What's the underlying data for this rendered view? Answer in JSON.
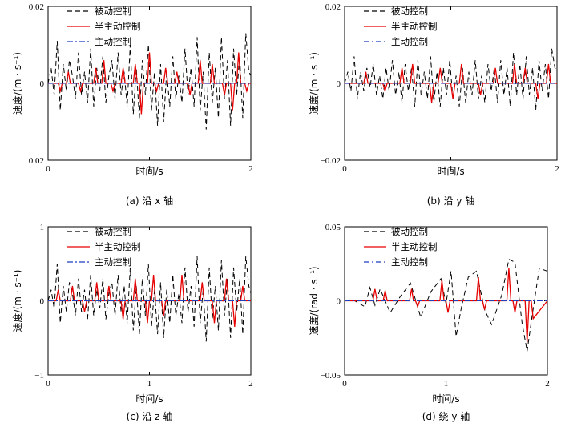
{
  "chart_data": [
    {
      "type": "line",
      "caption": "(a)  沿 x 轴",
      "ylabel": "速度/(m · s⁻¹)",
      "xlabel": "时间/s",
      "xlim": [
        0,
        2
      ],
      "ylim": [
        -0.02,
        0.02
      ],
      "xticks": [
        "0",
        "1",
        "2"
      ],
      "yticks": [
        "0.02",
        "0",
        "0.02"
      ],
      "legend": "top-left",
      "series": [
        {
          "name": "被动控制",
          "style": "dashed",
          "color": "#000000",
          "x": [
            0,
            0.03,
            0.06,
            0.09,
            0.12,
            0.15,
            0.18,
            0.21,
            0.24,
            0.27,
            0.3,
            0.33,
            0.36,
            0.39,
            0.42,
            0.45,
            0.48,
            0.51,
            0.54,
            0.57,
            0.6,
            0.63,
            0.66,
            0.69,
            0.72,
            0.75,
            0.78,
            0.81,
            0.84,
            0.87,
            0.9,
            0.93,
            0.96,
            0.99,
            1.02,
            1.05,
            1.08,
            1.11,
            1.14,
            1.17,
            1.2,
            1.23,
            1.26,
            1.29,
            1.32,
            1.35,
            1.38,
            1.41,
            1.44,
            1.47,
            1.5,
            1.53,
            1.56,
            1.59,
            1.62,
            1.65,
            1.68,
            1.71,
            1.74,
            1.77,
            1.8,
            1.83,
            1.86,
            1.89,
            1.92,
            1.95,
            1.98,
            2.0
          ],
          "y": [
            0,
            0.004,
            -0.003,
            0.011,
            -0.007,
            0.005,
            -0.002,
            0.006,
            0.002,
            -0.004,
            0.008,
            -0.003,
            0.003,
            -0.005,
            0.009,
            -0.006,
            0.004,
            -0.002,
            0.007,
            -0.005,
            0.002,
            0.006,
            -0.004,
            0.008,
            -0.003,
            0.003,
            -0.006,
            0.01,
            -0.008,
            0.004,
            -0.009,
            0.006,
            -0.003,
            0.01,
            -0.007,
            0.003,
            -0.011,
            0.005,
            -0.01,
            0.003,
            -0.006,
            0.007,
            -0.004,
            0.002,
            -0.005,
            0.009,
            -0.003,
            0.004,
            -0.006,
            0.012,
            -0.007,
            0.003,
            -0.012,
            0.008,
            -0.005,
            0.004,
            -0.009,
            0.012,
            -0.004,
            0.006,
            -0.011,
            0.009,
            -0.003,
            0.007,
            -0.009,
            0.013,
            0.003,
            0.002
          ]
        },
        {
          "name": "半主动控制",
          "style": "solid",
          "color": "#e60000",
          "x": [
            0,
            0.1,
            0.12,
            0.14,
            0.18,
            0.2,
            0.22,
            0.3,
            0.32,
            0.34,
            0.45,
            0.47,
            0.49,
            0.53,
            0.55,
            0.57,
            0.62,
            0.64,
            0.66,
            0.72,
            0.74,
            0.76,
            0.84,
            0.86,
            0.88,
            0.9,
            0.92,
            0.94,
            0.98,
            1.0,
            1.02,
            1.05,
            1.07,
            1.09,
            1.14,
            1.16,
            1.18,
            1.25,
            1.27,
            1.29,
            1.38,
            1.4,
            1.42,
            1.48,
            1.5,
            1.52,
            1.6,
            1.62,
            1.64,
            1.72,
            1.74,
            1.76,
            1.8,
            1.82,
            1.84,
            1.86,
            1.88,
            1.9,
            1.94,
            1.96,
            1.98,
            2.0
          ],
          "y": [
            0,
            0,
            -0.002,
            0,
            0,
            0.003,
            0,
            0,
            -0.002,
            0,
            0,
            0.004,
            0,
            0,
            0.006,
            0,
            0,
            -0.002,
            0,
            0,
            0.004,
            0,
            0,
            0.005,
            0,
            0,
            -0.008,
            0,
            0,
            0.008,
            0,
            0,
            -0.002,
            0,
            0,
            0.004,
            0,
            0,
            0.003,
            0,
            0,
            -0.003,
            0,
            0,
            0.006,
            0,
            0,
            0.005,
            0,
            0,
            -0.003,
            0,
            0,
            -0.007,
            0,
            0,
            0.008,
            0,
            0,
            -0.002,
            0,
            0
          ]
        },
        {
          "name": "主动控制",
          "style": "dashdot",
          "color": "#1f3fbf",
          "x": [
            0,
            2
          ],
          "y": [
            0,
            0
          ]
        }
      ]
    },
    {
      "type": "line",
      "caption": "(b)  沿 y 轴",
      "ylabel": "速度/(m · s⁻¹)",
      "xlabel": "时间/s",
      "xlim": [
        0,
        2
      ],
      "ylim": [
        -0.02,
        0.02
      ],
      "xticks": [
        "0",
        "1",
        "2"
      ],
      "yticks": [
        "0.02",
        "0",
        "−0.02"
      ],
      "legend": "top-left",
      "series": [
        {
          "name": "被动控制",
          "style": "dashed",
          "color": "#000000",
          "x": [
            0,
            0.03,
            0.06,
            0.09,
            0.12,
            0.15,
            0.18,
            0.21,
            0.24,
            0.27,
            0.3,
            0.33,
            0.36,
            0.39,
            0.42,
            0.45,
            0.48,
            0.51,
            0.54,
            0.57,
            0.6,
            0.63,
            0.66,
            0.69,
            0.72,
            0.75,
            0.78,
            0.81,
            0.84,
            0.87,
            0.9,
            0.93,
            0.96,
            0.99,
            1.02,
            1.05,
            1.08,
            1.11,
            1.14,
            1.17,
            1.2,
            1.23,
            1.26,
            1.29,
            1.32,
            1.35,
            1.38,
            1.41,
            1.44,
            1.47,
            1.5,
            1.53,
            1.56,
            1.59,
            1.62,
            1.65,
            1.68,
            1.71,
            1.74,
            1.77,
            1.8,
            1.83,
            1.86,
            1.89,
            1.92,
            1.95,
            1.98,
            2.0
          ],
          "y": [
            0,
            0.003,
            -0.002,
            0.007,
            -0.004,
            0.003,
            -0.002,
            0.004,
            -0.001,
            0.005,
            -0.003,
            0.002,
            -0.004,
            0.004,
            -0.002,
            0.006,
            -0.003,
            0.003,
            -0.005,
            0.005,
            -0.002,
            0.004,
            -0.006,
            0.006,
            -0.003,
            0.003,
            -0.004,
            0.007,
            -0.005,
            0.003,
            -0.006,
            0.004,
            -0.003,
            0.006,
            -0.004,
            0.002,
            -0.006,
            0.004,
            -0.005,
            0.003,
            -0.003,
            0.006,
            -0.004,
            0.002,
            -0.005,
            0.005,
            -0.002,
            0.004,
            -0.005,
            0.006,
            -0.003,
            0.004,
            -0.006,
            0.008,
            -0.003,
            0.005,
            -0.004,
            0.007,
            -0.003,
            0.004,
            -0.007,
            0.006,
            -0.002,
            0.005,
            -0.004,
            0.009,
            0.004,
            0.003
          ]
        },
        {
          "name": "半主动控制",
          "style": "solid",
          "color": "#e60000",
          "x": [
            0,
            0.18,
            0.2,
            0.22,
            0.36,
            0.38,
            0.4,
            0.52,
            0.54,
            0.56,
            0.62,
            0.64,
            0.66,
            0.8,
            0.82,
            0.84,
            0.88,
            0.9,
            0.92,
            1.0,
            1.02,
            1.04,
            1.08,
            1.1,
            1.12,
            1.26,
            1.28,
            1.3,
            1.4,
            1.42,
            1.44,
            1.58,
            1.6,
            1.62,
            1.68,
            1.7,
            1.72,
            1.8,
            1.82,
            1.84,
            1.9,
            1.92,
            1.94,
            2.0
          ],
          "y": [
            0,
            0,
            0.003,
            0,
            0,
            -0.002,
            0,
            0,
            0.004,
            0,
            0,
            0.005,
            0,
            0,
            -0.005,
            0,
            0,
            0.004,
            0,
            0,
            -0.004,
            0,
            0,
            0.005,
            0,
            0,
            -0.003,
            0,
            0,
            0.004,
            0,
            0,
            0.005,
            0,
            0,
            0.004,
            0,
            0,
            -0.004,
            0,
            0,
            0.005,
            0,
            0
          ]
        },
        {
          "name": "主动控制",
          "style": "dashdot",
          "color": "#1f3fbf",
          "x": [
            0,
            2
          ],
          "y": [
            0,
            0
          ]
        }
      ]
    },
    {
      "type": "line",
      "caption": "(c)  沿 z 轴",
      "ylabel": "速度/(m · s⁻¹)",
      "xlabel": "时间/s",
      "xlim": [
        0,
        2
      ],
      "ylim": [
        -1,
        1
      ],
      "xticks": [
        "0",
        "1",
        "2"
      ],
      "yticks": [
        "1",
        "0",
        "−1"
      ],
      "legend": "top-left",
      "series": [
        {
          "name": "被动控制",
          "style": "dashed",
          "color": "#000000",
          "x": [
            0,
            0.03,
            0.06,
            0.09,
            0.12,
            0.15,
            0.18,
            0.21,
            0.24,
            0.27,
            0.3,
            0.33,
            0.36,
            0.39,
            0.42,
            0.45,
            0.48,
            0.51,
            0.54,
            0.57,
            0.6,
            0.63,
            0.66,
            0.69,
            0.72,
            0.75,
            0.78,
            0.81,
            0.84,
            0.87,
            0.9,
            0.93,
            0.96,
            0.99,
            1.02,
            1.05,
            1.08,
            1.11,
            1.14,
            1.17,
            1.2,
            1.23,
            1.26,
            1.29,
            1.32,
            1.35,
            1.38,
            1.41,
            1.44,
            1.47,
            1.5,
            1.53,
            1.56,
            1.59,
            1.62,
            1.65,
            1.68,
            1.71,
            1.74,
            1.77,
            1.8,
            1.83,
            1.86,
            1.89,
            1.92,
            1.95,
            1.98,
            2.0
          ],
          "y": [
            0,
            0.15,
            -0.1,
            0.5,
            -0.3,
            0.2,
            -0.15,
            0.25,
            0.1,
            -0.2,
            0.3,
            -0.15,
            0.15,
            -0.25,
            0.35,
            -0.2,
            0.15,
            -0.1,
            0.3,
            -0.25,
            0.1,
            0.25,
            -0.2,
            0.35,
            -0.15,
            0.2,
            -0.3,
            0.45,
            -0.4,
            0.2,
            -0.45,
            0.3,
            -0.2,
            0.5,
            -0.35,
            0.15,
            -0.45,
            0.25,
            -0.5,
            0.15,
            -0.3,
            0.35,
            -0.2,
            0.1,
            -0.3,
            0.45,
            -0.15,
            0.2,
            -0.35,
            0.6,
            -0.3,
            0.15,
            -0.55,
            0.45,
            -0.25,
            0.2,
            -0.4,
            0.55,
            -0.2,
            0.3,
            -0.5,
            0.45,
            -0.15,
            0.3,
            -0.45,
            0.6,
            0.2,
            0.1
          ]
        },
        {
          "name": "半主动控制",
          "style": "solid",
          "color": "#e60000",
          "x": [
            0,
            0.08,
            0.1,
            0.12,
            0.22,
            0.24,
            0.26,
            0.34,
            0.36,
            0.38,
            0.46,
            0.48,
            0.5,
            0.58,
            0.6,
            0.62,
            0.72,
            0.74,
            0.76,
            0.84,
            0.86,
            0.88,
            0.96,
            0.98,
            1.0,
            1.02,
            1.04,
            1.06,
            1.12,
            1.14,
            1.16,
            1.3,
            1.32,
            1.34,
            1.5,
            1.52,
            1.54,
            1.62,
            1.64,
            1.66,
            1.74,
            1.76,
            1.78,
            1.82,
            1.84,
            1.86,
            1.9,
            1.92,
            1.94,
            2.0
          ],
          "y": [
            0,
            0,
            0.15,
            0,
            0,
            0.2,
            0,
            0,
            -0.15,
            0,
            0,
            0.25,
            0,
            0,
            0.2,
            0,
            0,
            -0.25,
            0,
            0,
            0.3,
            0,
            0,
            -0.3,
            0,
            0,
            0.35,
            0,
            0,
            -0.2,
            0,
            0,
            0.35,
            0,
            0,
            0.25,
            0,
            0,
            -0.3,
            0,
            0,
            0.3,
            0,
            0,
            -0.35,
            0,
            0,
            0.2,
            0,
            0
          ]
        },
        {
          "name": "主动控制",
          "style": "dashdot",
          "color": "#1f3fbf",
          "x": [
            0,
            2
          ],
          "y": [
            0,
            0
          ]
        }
      ]
    },
    {
      "type": "line",
      "caption": "(d)  绕 y 轴",
      "ylabel": "速度/(rad · s⁻¹)",
      "xlabel": "时间/s",
      "xlim": [
        0,
        2
      ],
      "ylim": [
        -0.05,
        0.05
      ],
      "xticks": [
        "0",
        "1",
        "2"
      ],
      "yticks": [
        "0.05",
        "0",
        "−0.05"
      ],
      "legend": "top-left",
      "series": [
        {
          "name": "被动控制",
          "style": "dashed",
          "color": "#000000",
          "x": [
            0,
            0.1,
            0.2,
            0.25,
            0.3,
            0.35,
            0.45,
            0.55,
            0.65,
            0.75,
            0.85,
            0.95,
            1.0,
            1.05,
            1.1,
            1.15,
            1.22,
            1.3,
            1.38,
            1.45,
            1.55,
            1.62,
            1.68,
            1.75,
            1.8,
            1.85,
            1.92,
            2.0
          ],
          "y": [
            0,
            0,
            -0.004,
            0.009,
            -0.003,
            0.008,
            -0.008,
            0.003,
            0.012,
            -0.011,
            0.006,
            0.015,
            -0.002,
            0.02,
            -0.024,
            -0.005,
            0.016,
            0.02,
            -0.006,
            -0.016,
            0.004,
            0.028,
            0.026,
            -0.015,
            -0.034,
            -0.01,
            0.022,
            0.02
          ]
        },
        {
          "name": "半主动控制",
          "style": "solid",
          "color": "#e60000",
          "x": [
            0,
            0.28,
            0.3,
            0.32,
            0.38,
            0.4,
            0.42,
            0.64,
            0.66,
            0.68,
            0.7,
            0.72,
            0.74,
            0.94,
            0.96,
            0.98,
            1.0,
            1.02,
            1.04,
            1.3,
            1.32,
            1.34,
            1.36,
            1.38,
            1.4,
            1.6,
            1.62,
            1.64,
            1.66,
            1.68,
            1.7,
            1.78,
            1.8,
            1.82,
            1.84,
            1.86,
            2.0
          ],
          "y": [
            0,
            0,
            0.008,
            0,
            0,
            0.007,
            0,
            0,
            0.008,
            0,
            0,
            -0.004,
            0,
            0,
            0.014,
            0,
            0,
            -0.008,
            0,
            0,
            0.016,
            0,
            0,
            -0.006,
            0,
            0,
            0.022,
            0,
            0,
            -0.008,
            0,
            0,
            -0.028,
            0,
            0,
            -0.012,
            0
          ]
        },
        {
          "name": "主动控制",
          "style": "dashdot",
          "color": "#1f3fbf",
          "x": [
            0,
            2
          ],
          "y": [
            0,
            0
          ]
        }
      ]
    }
  ]
}
